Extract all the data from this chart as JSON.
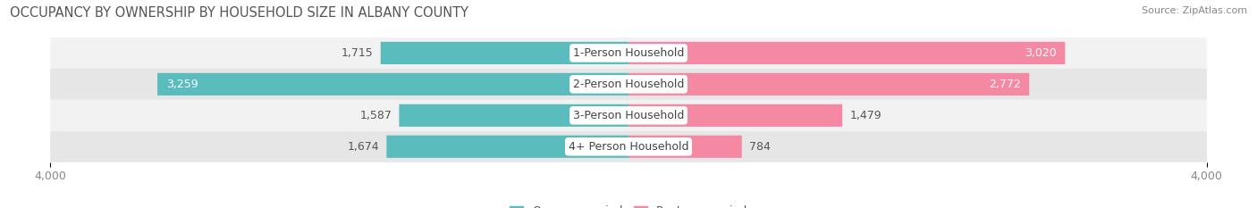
{
  "title": "OCCUPANCY BY OWNERSHIP BY HOUSEHOLD SIZE IN ALBANY COUNTY",
  "source": "Source: ZipAtlas.com",
  "categories": [
    "1-Person Household",
    "2-Person Household",
    "3-Person Household",
    "4+ Person Household"
  ],
  "owner_values": [
    1715,
    3259,
    1587,
    1674
  ],
  "renter_values": [
    3020,
    2772,
    1479,
    784
  ],
  "owner_color": "#5bbcbe",
  "renter_color": "#f589a3",
  "owner_color_dark": "#3a9ea0",
  "renter_color_dark": "#e8527a",
  "row_bg_colors": [
    "#f2f2f2",
    "#e6e6e6",
    "#f2f2f2",
    "#e6e6e6"
  ],
  "axis_max": 4000,
  "title_fontsize": 10.5,
  "source_fontsize": 8,
  "tick_fontsize": 9,
  "bar_label_fontsize": 9,
  "category_fontsize": 9,
  "legend_fontsize": 9,
  "dark_label_color": "#555555",
  "white_label_color": "#ffffff",
  "owner_inside_threshold": 2000,
  "renter_inside_threshold": 2000
}
